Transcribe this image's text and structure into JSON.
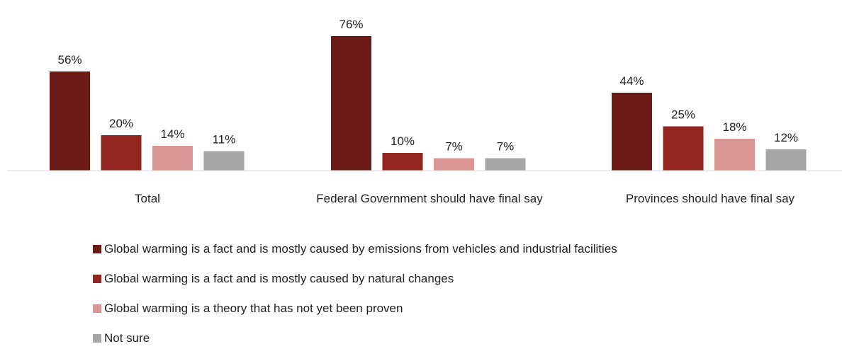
{
  "chart_data": {
    "type": "bar",
    "title": "",
    "xlabel": "",
    "ylabel": "",
    "ylim": [
      0,
      80
    ],
    "categories": [
      "Total",
      "Federal Government should have final say",
      "Provinces should have final say"
    ],
    "series": [
      {
        "name": "Global warming is a fact and is mostly caused by emissions from vehicles and industrial facilities",
        "color": "#6b1a16",
        "values": [
          56,
          76,
          44
        ],
        "labels": [
          "56%",
          "76%",
          "44%"
        ]
      },
      {
        "name": "Global warming is a fact and is mostly caused by natural changes",
        "color": "#922520",
        "values": [
          20,
          10,
          25
        ],
        "labels": [
          "20%",
          "10%",
          "25%"
        ]
      },
      {
        "name": "Global warming is a theory that has not yet been proven",
        "color": "#d99694",
        "values": [
          14,
          7,
          18
        ],
        "labels": [
          "14%",
          "7%",
          "18%"
        ]
      },
      {
        "name": "Not sure",
        "color": "#a6a6a6",
        "values": [
          11,
          7,
          12
        ],
        "labels": [
          "11%",
          "7%",
          "12%"
        ]
      }
    ],
    "grid": false,
    "legend_position": "bottom"
  }
}
